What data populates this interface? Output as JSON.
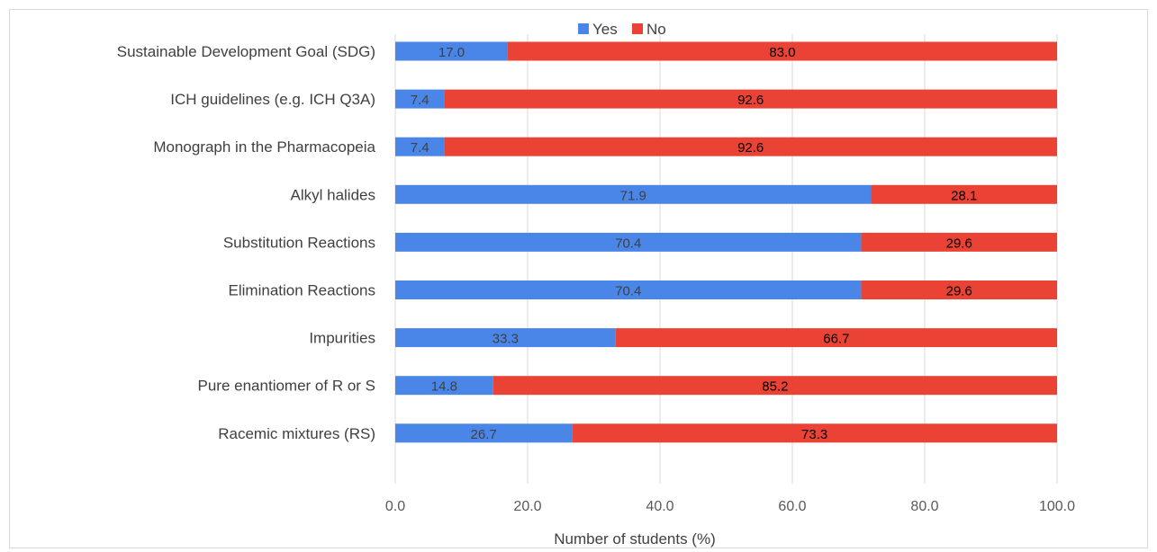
{
  "chart_data": {
    "type": "bar",
    "orientation": "horizontal",
    "stacked": true,
    "categories": [
      "Sustainable Development Goal (SDG)",
      "ICH guidelines (e.g. ICH Q3A)",
      "Monograph in the Pharmacopeia",
      "Alkyl halides",
      "Substitution Reactions",
      "Elimination Reactions",
      "Impurities",
      "Pure enantiomer of R or S",
      "Racemic mixtures (RS)"
    ],
    "series": [
      {
        "name": "Yes",
        "color": "#4a86e8",
        "label_color": "#404040",
        "values": [
          17.0,
          7.4,
          7.4,
          71.9,
          70.4,
          70.4,
          33.3,
          14.8,
          26.7
        ]
      },
      {
        "name": "No",
        "color": "#ea4335",
        "label_color": "#000000",
        "values": [
          83.0,
          92.6,
          92.6,
          28.1,
          29.6,
          29.6,
          66.7,
          85.2,
          73.3
        ]
      }
    ],
    "xlabel": "Number of students (%)",
    "ylabel": "",
    "xlim": [
      0,
      100
    ],
    "xticks": [
      0,
      20,
      40,
      60,
      80,
      100
    ],
    "tick_format_decimals": 1,
    "grid": "vertical",
    "legend_position": "top"
  }
}
